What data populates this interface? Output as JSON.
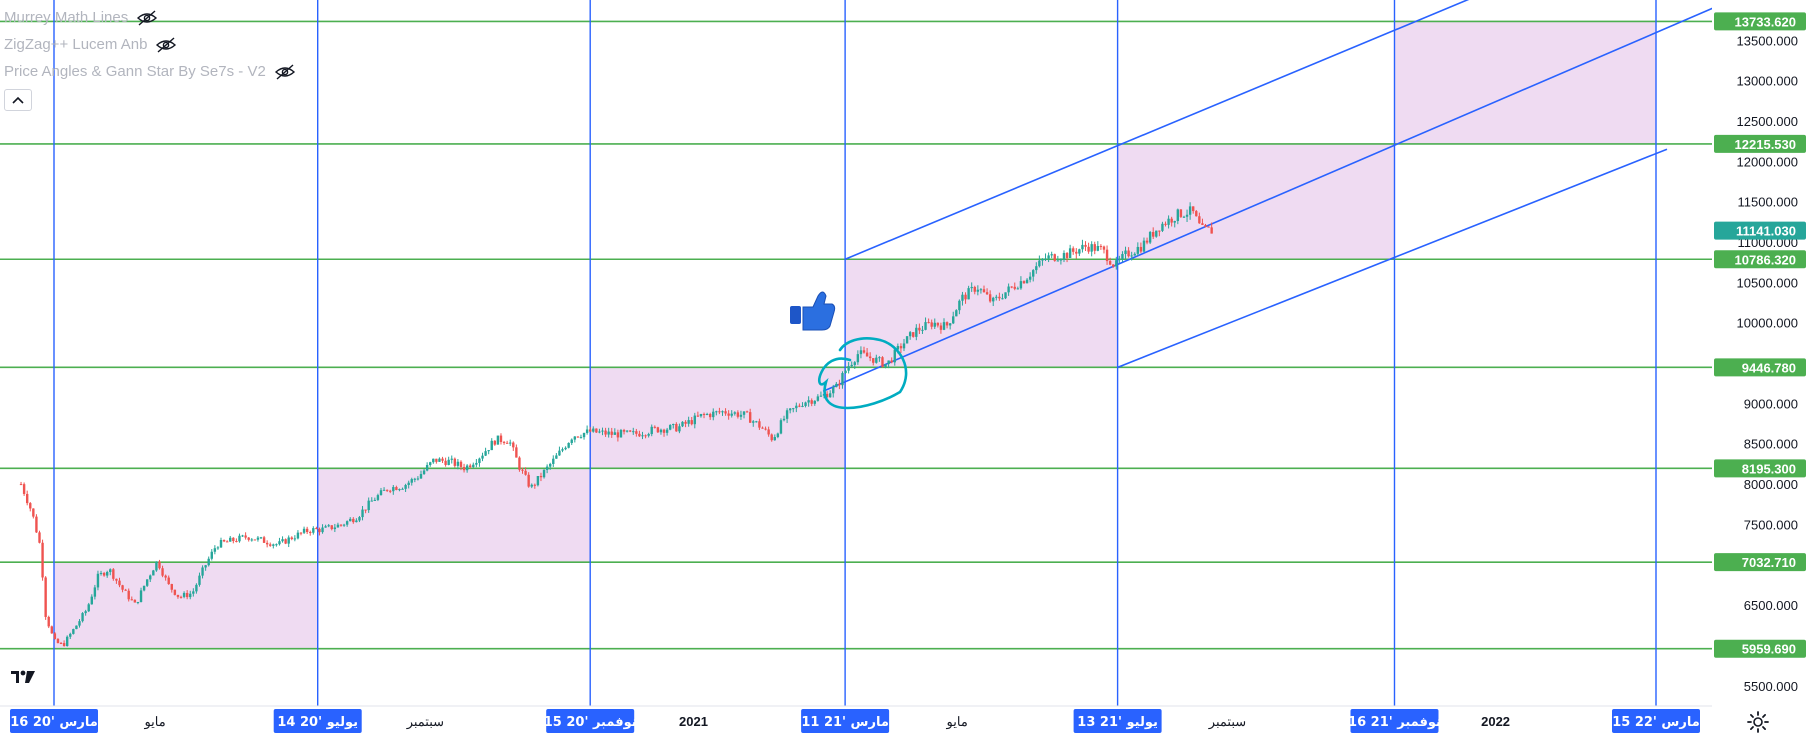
{
  "legend": [
    {
      "label": "Murrey Math Lines",
      "icon": "eye-off-icon"
    },
    {
      "label": "ZigZag++ Lucem Anb",
      "icon": "eye-off-icon"
    },
    {
      "label": "Price Angles & Gann Star By Se7s - V2",
      "icon": "eye-off-icon"
    }
  ],
  "colors": {
    "up": "#26a69a",
    "down": "#ef5350",
    "green_line": "#4caf50",
    "blue_line": "#2962ff",
    "box_fill": "#e1bee7",
    "box_stroke": "#9c27b0",
    "circle": "#00acc1",
    "price_tag": "#26a69a",
    "axis_text": "#131722",
    "grid": "#f0f3fa"
  },
  "chart_data": {
    "type": "candlestick",
    "ylim": [
      5250,
      13900
    ],
    "xlim": [
      "2020-03-01",
      "2022-04-10"
    ],
    "y_ticks": [
      5500,
      6500,
      7500,
      8000,
      8500,
      9000,
      10000,
      10500,
      11000,
      11500,
      12000,
      12500,
      13000,
      13500
    ],
    "y_tick_labels": [
      "5500.000",
      "6500.000",
      "7500.000",
      "8000.000",
      "8500.000",
      "9000.000",
      "10000.000",
      "10500.000",
      "11000.000",
      "11500.000",
      "12000.000",
      "12500.000",
      "13000.000",
      "13500.000"
    ],
    "horizontal_levels": [
      {
        "value": 5959.69,
        "label": "5959.690"
      },
      {
        "value": 7032.71,
        "label": "7032.710"
      },
      {
        "value": 8195.3,
        "label": "8195.300"
      },
      {
        "value": 9446.78,
        "label": "9446.780"
      },
      {
        "value": 10786.32,
        "label": "10786.320"
      },
      {
        "value": 12215.53,
        "label": "12215.530"
      },
      {
        "value": 13733.62,
        "label": "13733.620"
      }
    ],
    "last_price": {
      "value": 11141.03,
      "label": "11141.030"
    },
    "vertical_dates": [
      {
        "date": "2020-03-16",
        "label": "16 مارس '20"
      },
      {
        "date": "2020-07-14",
        "label": "14 يوليو '20"
      },
      {
        "date": "2020-11-15",
        "label": "15 نوفمبر '20"
      },
      {
        "date": "2021-03-11",
        "label": "11 مارس '21"
      },
      {
        "date": "2021-07-13",
        "label": "13 يوليو '21"
      },
      {
        "date": "2021-11-16",
        "label": "16 نوفمبر '21"
      },
      {
        "date": "2022-03-15",
        "label": "15 مارس '22"
      }
    ],
    "x_tick_labels": [
      {
        "date": "2020-05-01",
        "label": "مايو"
      },
      {
        "date": "2020-09-01",
        "label": "سبتمبر"
      },
      {
        "date": "2021-01-01",
        "label": "2021"
      },
      {
        "date": "2021-05-01",
        "label": "مايو"
      },
      {
        "date": "2021-09-01",
        "label": "سبتمبر"
      },
      {
        "date": "2022-01-01",
        "label": "2022"
      }
    ],
    "boxes": [
      {
        "x0": "2020-03-16",
        "x1": "2020-07-14",
        "y0": 5959.69,
        "y1": 7032.71
      },
      {
        "x0": "2020-07-14",
        "x1": "2020-11-15",
        "y0": 7032.71,
        "y1": 8195.3
      },
      {
        "x0": "2020-11-15",
        "x1": "2021-03-11",
        "y0": 8195.3,
        "y1": 9446.78
      },
      {
        "x0": "2021-03-11",
        "x1": "2021-07-13",
        "y0": 9446.78,
        "y1": 10786.32
      },
      {
        "x0": "2021-07-13",
        "x1": "2021-11-16",
        "y0": 10786.32,
        "y1": 12215.53
      },
      {
        "x0": "2021-11-16",
        "x1": "2022-03-15",
        "y0": 12215.53,
        "y1": 13733.62
      }
    ],
    "channel_lines": [
      {
        "x0": "2021-03-01",
        "y0": 9150,
        "x1": "2022-04-10",
        "y1": 13900
      },
      {
        "x0": "2021-03-11",
        "y0": 10786.32,
        "x1": "2022-04-10",
        "y1": 15270
      },
      {
        "x0": "2021-07-13",
        "y0": 9446.78,
        "x1": "2022-03-20",
        "y1": 12150
      }
    ],
    "price_path": [
      [
        "2020-03-01",
        8000
      ],
      [
        "2020-03-06",
        7650
      ],
      [
        "2020-03-10",
        7200
      ],
      [
        "2020-03-12",
        6400
      ],
      [
        "2020-03-16",
        6050
      ],
      [
        "2020-03-20",
        6000
      ],
      [
        "2020-03-25",
        6200
      ],
      [
        "2020-03-31",
        6450
      ],
      [
        "2020-04-05",
        6850
      ],
      [
        "2020-04-10",
        6950
      ],
      [
        "2020-04-16",
        6700
      ],
      [
        "2020-04-22",
        6500
      ],
      [
        "2020-04-27",
        6800
      ],
      [
        "2020-05-02",
        7050
      ],
      [
        "2020-05-07",
        6750
      ],
      [
        "2020-05-12",
        6600
      ],
      [
        "2020-05-18",
        6650
      ],
      [
        "2020-05-23",
        6950
      ],
      [
        "2020-05-29",
        7250
      ],
      [
        "2020-06-05",
        7300
      ],
      [
        "2020-06-12",
        7350
      ],
      [
        "2020-06-19",
        7300
      ],
      [
        "2020-06-26",
        7250
      ],
      [
        "2020-07-03",
        7350
      ],
      [
        "2020-07-10",
        7430
      ],
      [
        "2020-07-17",
        7440
      ],
      [
        "2020-07-25",
        7500
      ],
      [
        "2020-08-01",
        7600
      ],
      [
        "2020-08-08",
        7800
      ],
      [
        "2020-08-15",
        7950
      ],
      [
        "2020-08-22",
        7980
      ],
      [
        "2020-08-29",
        8100
      ],
      [
        "2020-09-05",
        8300
      ],
      [
        "2020-09-12",
        8280
      ],
      [
        "2020-09-19",
        8200
      ],
      [
        "2020-09-26",
        8350
      ],
      [
        "2020-10-03",
        8550
      ],
      [
        "2020-10-09",
        8550
      ],
      [
        "2020-10-14",
        8200
      ],
      [
        "2020-10-19",
        7950
      ],
      [
        "2020-10-25",
        8150
      ],
      [
        "2020-10-31",
        8350
      ],
      [
        "2020-11-07",
        8600
      ],
      [
        "2020-11-15",
        8650
      ],
      [
        "2020-11-25",
        8620
      ],
      [
        "2020-12-05",
        8620
      ],
      [
        "2020-12-15",
        8680
      ],
      [
        "2020-12-25",
        8700
      ],
      [
        "2021-01-05",
        8850
      ],
      [
        "2021-01-15",
        8900
      ],
      [
        "2021-01-25",
        8850
      ],
      [
        "2021-02-01",
        8700
      ],
      [
        "2021-02-06",
        8560
      ],
      [
        "2021-02-12",
        8850
      ],
      [
        "2021-02-20",
        9020
      ],
      [
        "2021-02-28",
        9080
      ],
      [
        "2021-03-07",
        9200
      ],
      [
        "2021-03-12",
        9450
      ],
      [
        "2021-03-17",
        9620
      ],
      [
        "2021-03-24",
        9550
      ],
      [
        "2021-03-30",
        9480
      ],
      [
        "2021-04-05",
        9700
      ],
      [
        "2021-04-12",
        9900
      ],
      [
        "2021-04-20",
        10000
      ],
      [
        "2021-04-26",
        9950
      ],
      [
        "2021-05-03",
        10300
      ],
      [
        "2021-05-10",
        10450
      ],
      [
        "2021-05-17",
        10250
      ],
      [
        "2021-05-24",
        10400
      ],
      [
        "2021-06-01",
        10550
      ],
      [
        "2021-06-10",
        10800
      ],
      [
        "2021-06-20",
        10850
      ],
      [
        "2021-06-29",
        10950
      ],
      [
        "2021-07-06",
        10900
      ],
      [
        "2021-07-12",
        10700
      ],
      [
        "2021-07-17",
        10850
      ],
      [
        "2021-07-24",
        10950
      ],
      [
        "2021-08-01",
        11200
      ],
      [
        "2021-08-10",
        11350
      ],
      [
        "2021-08-16",
        11380
      ],
      [
        "2021-08-20",
        11150
      ],
      [
        "2021-08-25",
        11141
      ]
    ]
  }
}
